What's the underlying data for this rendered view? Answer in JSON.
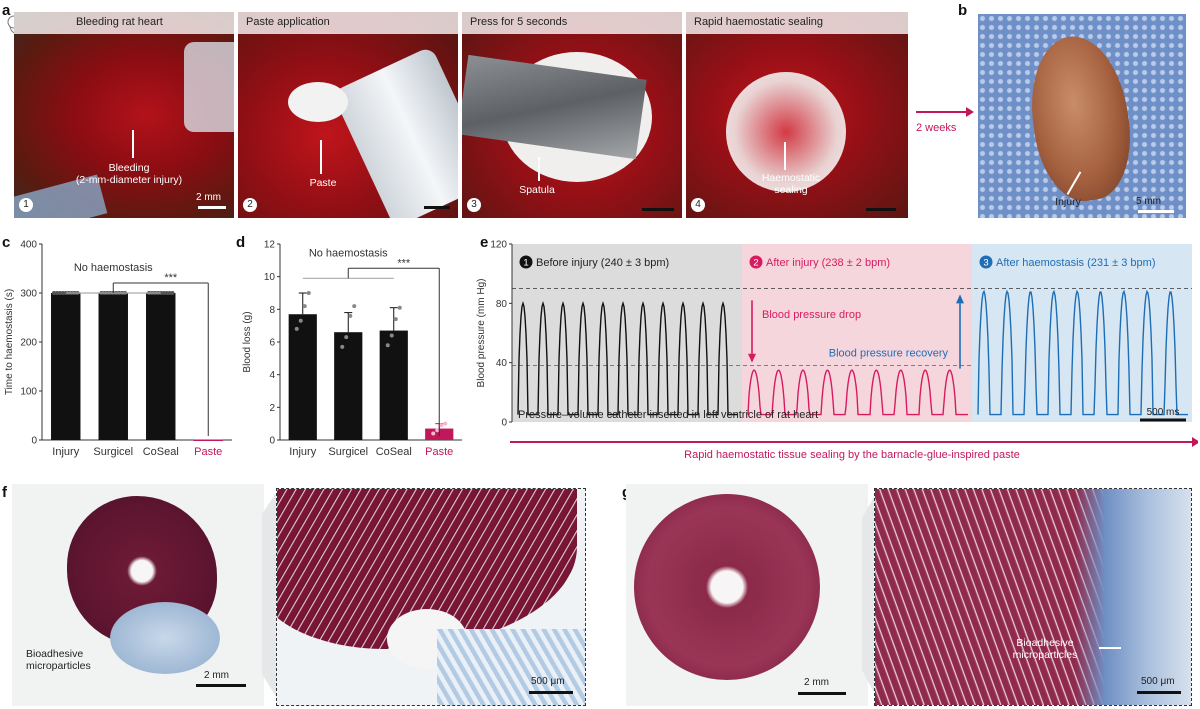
{
  "panel_letters": {
    "a": "a",
    "b": "b",
    "c": "c",
    "d": "d",
    "e": "e",
    "f": "f",
    "g": "g"
  },
  "panel_a": {
    "steps": [
      {
        "num": "1",
        "caption": "Bleeding rat heart",
        "annotation": "Bleeding\n(2-mm-diameter injury)",
        "scale": "2 mm"
      },
      {
        "num": "2",
        "caption": "Paste application",
        "annotation": "Paste"
      },
      {
        "num": "3",
        "caption": "Press for 5 seconds",
        "annotation": "Spatula"
      },
      {
        "num": "4",
        "caption": "Rapid haemostatic sealing",
        "annotation": "Haemostatic\nsealing"
      }
    ],
    "two_weeks": "2 weeks",
    "colors": {
      "arrow": "#c2185b"
    }
  },
  "panel_b": {
    "annotation": "Injury",
    "scale": "5 mm"
  },
  "chart_data": [
    {
      "panel": "c",
      "type": "bar",
      "categories": [
        "Injury",
        "Surgicel",
        "CoSeal",
        "Paste"
      ],
      "values": [
        300,
        300,
        300,
        1
      ],
      "ylabel": "Time to haemostasis (s)",
      "ylim": [
        0,
        400
      ],
      "yticks": [
        "0",
        "100",
        "200",
        "300",
        "400"
      ],
      "annotation": "No haemostasis",
      "significance": "***",
      "colors": {
        "bar": "#111111",
        "highlight": "#c2185b"
      }
    },
    {
      "panel": "d",
      "type": "bar",
      "categories": [
        "Injury",
        "Surgicel",
        "CoSeal",
        "Paste"
      ],
      "values": [
        7.7,
        6.6,
        6.7,
        0.7
      ],
      "errors": [
        1.3,
        1.2,
        1.4,
        0.3
      ],
      "points": [
        [
          6.8,
          7.3,
          8.2,
          9.0
        ],
        [
          5.7,
          6.3,
          7.6,
          8.2
        ],
        [
          5.8,
          6.4,
          7.4,
          8.1
        ],
        [
          0.4,
          0.6,
          0.9,
          1.0
        ]
      ],
      "ylabel": "Blood loss (g)",
      "ylim": [
        0,
        12
      ],
      "yticks": [
        "0",
        "2",
        "4",
        "6",
        "8",
        "10",
        "12"
      ],
      "annotation": "No haemostasis",
      "significance": "***",
      "colors": {
        "bar": "#111111",
        "highlight": "#c2185b"
      }
    },
    {
      "panel": "e",
      "type": "line",
      "ylabel": "Blood pressure (mm Hg)",
      "ylim": [
        0,
        120
      ],
      "yticks": [
        "0",
        "40",
        "80",
        "120"
      ],
      "segments": [
        {
          "num": "1",
          "label": "Before injury (240 ± 3 bpm)",
          "color": "#111111",
          "bg": "#dcdcdc",
          "cycles": 11,
          "min": 5,
          "max": 80
        },
        {
          "num": "2",
          "label": "After injury (238 ± 2 bpm)",
          "color": "#d81b60",
          "bg": "#f6d6dd",
          "cycles": 9,
          "min": 5,
          "max": 35
        },
        {
          "num": "3",
          "label": "After haemostasis (231 ± 3 bpm)",
          "color": "#1e6eb5",
          "bg": "#d6e6f3",
          "cycles": 9,
          "min": 5,
          "max": 88
        }
      ],
      "dashed_levels": [
        90,
        38
      ],
      "annotations": {
        "drop": "Blood pressure drop",
        "recovery": "Blood pressure recovery",
        "catheter": "Pressure–volume catheter inserted in left ventricle of rat heart",
        "scale": "500 ms"
      },
      "footer": "Rapid haemostatic tissue sealing by the barnacle-glue-inspired paste"
    }
  ],
  "panel_f": {
    "annotation": "Bioadhesive\nmicroparticles",
    "scale_left": "2 mm",
    "scale_right": "500 μm"
  },
  "panel_g": {
    "annotation": "Bioadhesive\nmicroparticles",
    "scale_left": "2 mm",
    "scale_right": "500 μm"
  }
}
